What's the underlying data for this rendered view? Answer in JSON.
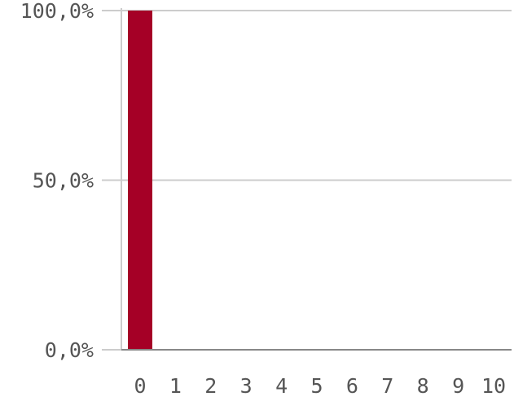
{
  "chart_data": {
    "type": "bar",
    "categories": [
      "0",
      "1",
      "2",
      "3",
      "4",
      "5",
      "6",
      "7",
      "8",
      "9",
      "10"
    ],
    "values": [
      100.0,
      0,
      0,
      0,
      0,
      0,
      0,
      0,
      0,
      0,
      0
    ],
    "ylim": [
      0,
      100
    ],
    "yticks": [
      0,
      50,
      100
    ],
    "ytick_labels": [
      "0,0%",
      "50,0%",
      "100,0%"
    ],
    "grid": true,
    "title": "",
    "xlabel": "",
    "ylabel": "",
    "colors": {
      "bar": "#a50026"
    }
  }
}
